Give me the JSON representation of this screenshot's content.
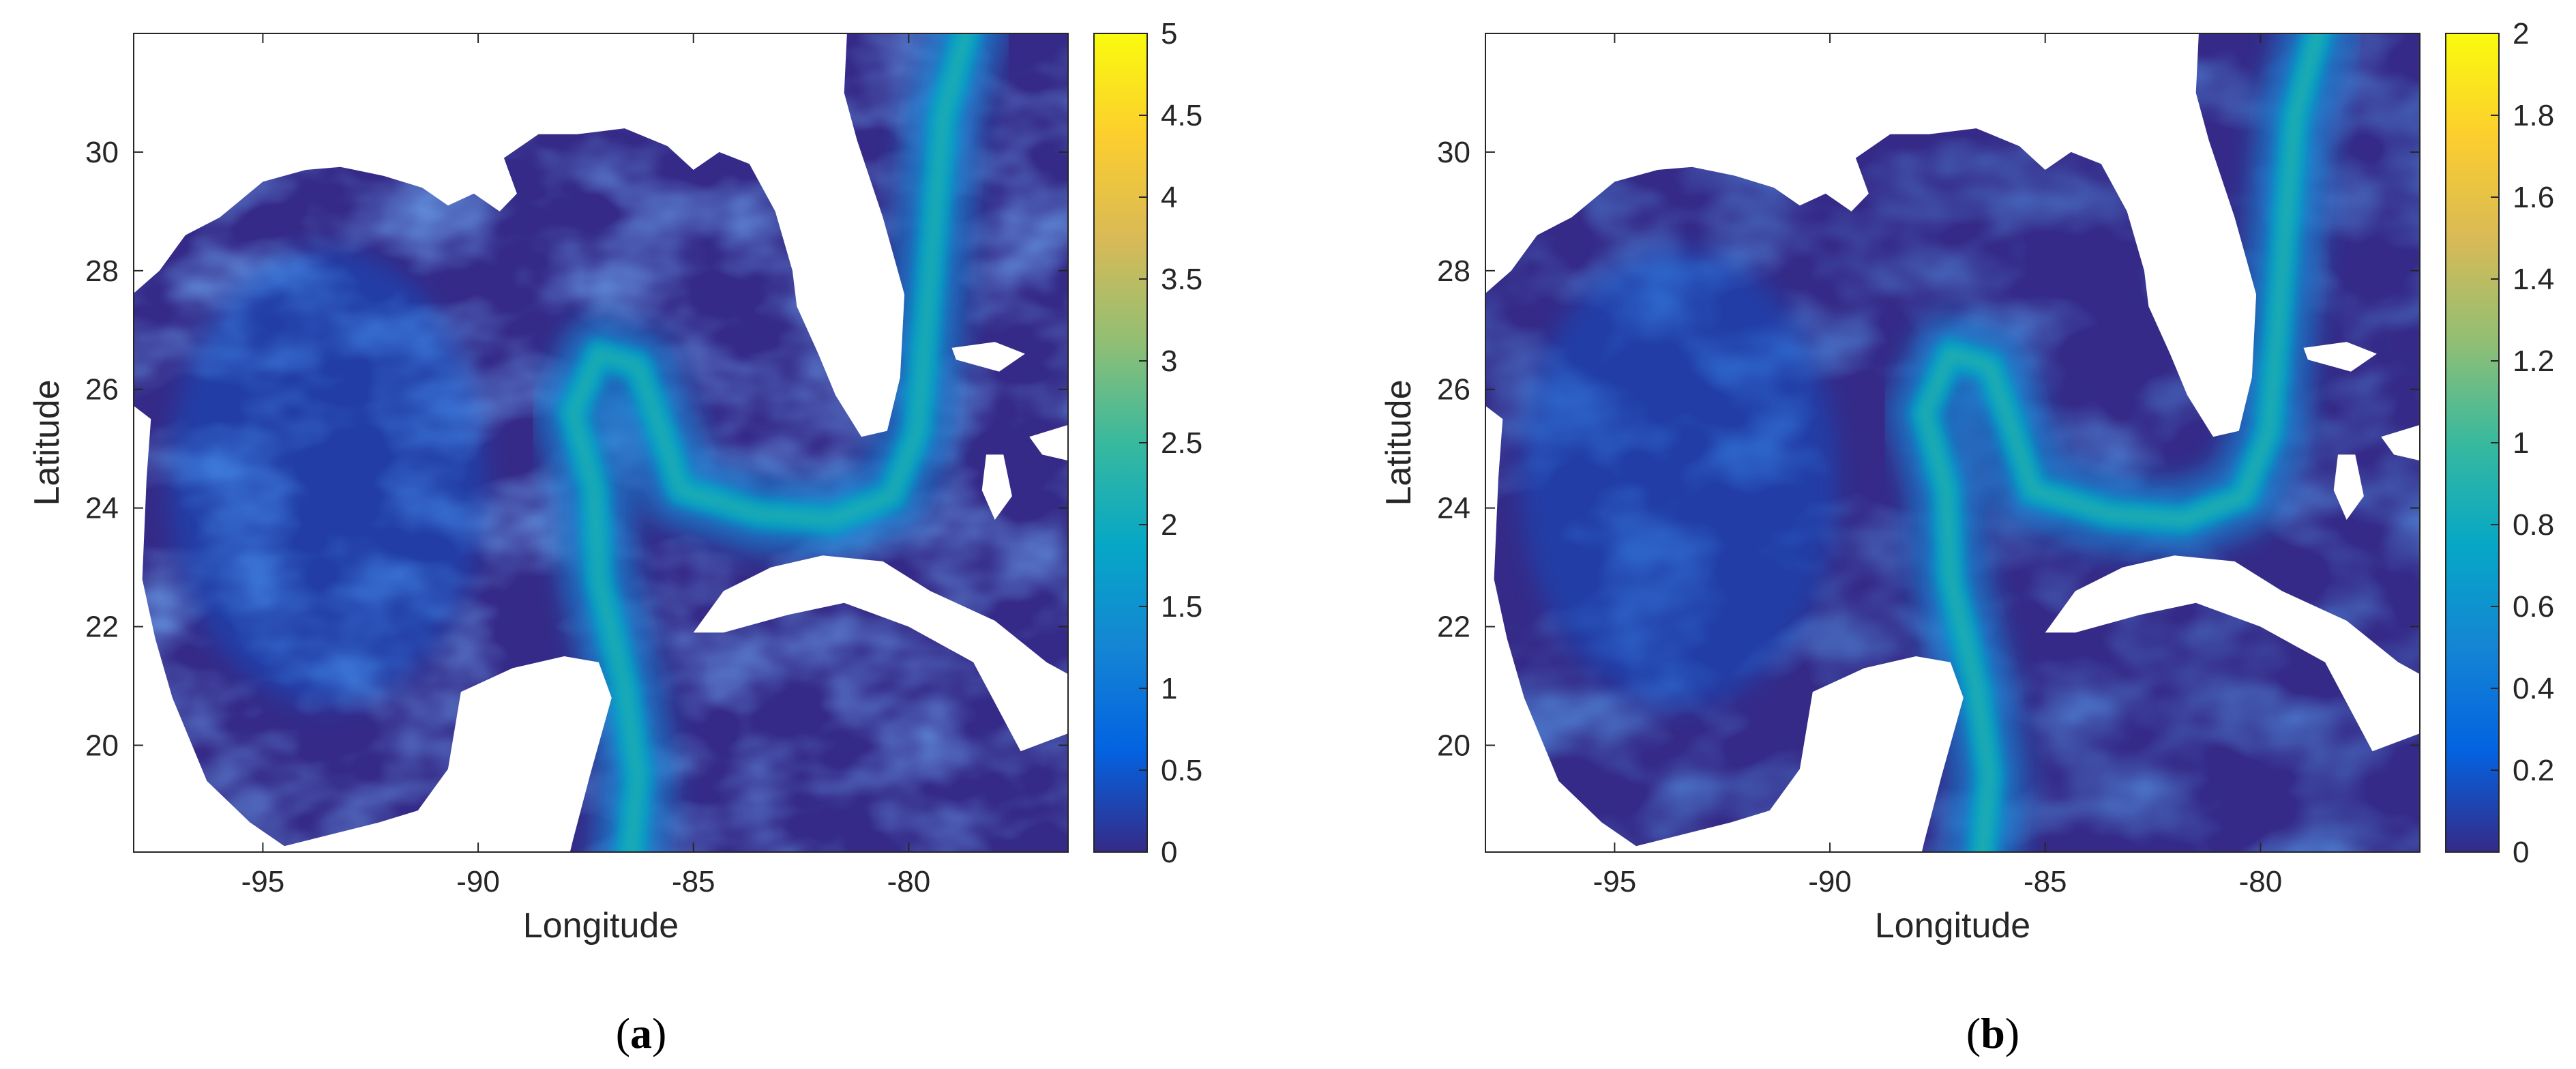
{
  "chart_data": [
    {
      "type": "heatmap",
      "caption_letter": "a",
      "xlabel": "Longitude",
      "ylabel": "Latitude",
      "xlim": [
        -98,
        -76.3
      ],
      "ylim": [
        18.2,
        32
      ],
      "xticks": [
        -95,
        -90,
        -85,
        -80
      ],
      "xtick_labels": [
        "-95",
        "-90",
        "-85",
        "-80"
      ],
      "yticks": [
        20,
        22,
        24,
        26,
        28,
        30
      ],
      "ytick_labels": [
        "20",
        "22",
        "24",
        "26",
        "28",
        "30"
      ],
      "colorbar": {
        "colormap": "parula",
        "range": [
          0,
          5
        ],
        "ticks": [
          0,
          0.5,
          1,
          1.5,
          2,
          2.5,
          3,
          3.5,
          4,
          4.5,
          5
        ],
        "tick_labels": [
          "0",
          "0.5",
          "1",
          "1.5",
          "2",
          "2.5",
          "3",
          "3.5",
          "4",
          "4.5",
          "5"
        ]
      },
      "stream_strength": 0.55,
      "grid": false
    },
    {
      "type": "heatmap",
      "caption_letter": "b",
      "xlabel": "Longitude",
      "ylabel": "Latitude",
      "xlim": [
        -98,
        -76.3
      ],
      "ylim": [
        18.2,
        32
      ],
      "xticks": [
        -95,
        -90,
        -85,
        -80
      ],
      "xtick_labels": [
        "-95",
        "-90",
        "-85",
        "-80"
      ],
      "yticks": [
        20,
        22,
        24,
        26,
        28,
        30
      ],
      "ytick_labels": [
        "20",
        "22",
        "24",
        "26",
        "28",
        "30"
      ],
      "colorbar": {
        "colormap": "parula",
        "range": [
          0,
          2
        ],
        "ticks": [
          0,
          0.2,
          0.4,
          0.6,
          0.8,
          1,
          1.2,
          1.4,
          1.6,
          1.8,
          2
        ],
        "tick_labels": [
          "0",
          "0.2",
          "0.4",
          "0.6",
          "0.8",
          "1",
          "1.2",
          "1.4",
          "1.6",
          "1.8",
          "2"
        ]
      },
      "stream_strength": 0.62,
      "grid": false
    }
  ],
  "colors": {
    "parula": [
      "#352a87",
      "#0363e1",
      "#1485d4",
      "#06a7c6",
      "#38b99e",
      "#92bf73",
      "#d9ba56",
      "#fcce2e",
      "#f9fb0e"
    ],
    "land": "#ffffff",
    "axis": "#262626"
  }
}
